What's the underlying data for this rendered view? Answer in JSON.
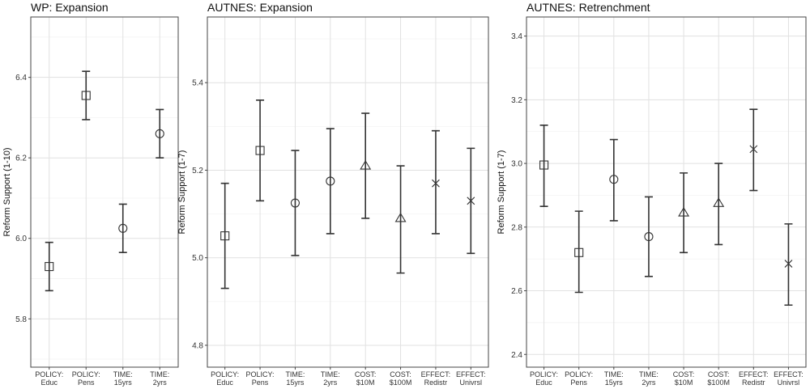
{
  "chart_data": [
    {
      "type": "errorbar",
      "title": "WP: Expansion",
      "ylabel": "Reform Support (1-10)",
      "ylim": [
        5.68,
        6.55
      ],
      "yticks": [
        "5.8",
        "6.0",
        "6.2",
        "6.4"
      ],
      "grid": true,
      "categories": [
        [
          "POLICY:",
          "Educ"
        ],
        [
          "POLICY:",
          "Pens"
        ],
        [
          "TIME:",
          "15yrs"
        ],
        [
          "TIME:",
          "2yrs"
        ]
      ],
      "markers": [
        "square",
        "square",
        "circle",
        "circle"
      ],
      "values": [
        5.93,
        6.355,
        6.025,
        6.26
      ],
      "lower": [
        5.87,
        6.295,
        5.965,
        6.2
      ],
      "upper": [
        5.99,
        6.415,
        6.085,
        6.32
      ]
    },
    {
      "type": "errorbar",
      "title": "AUTNES: Expansion",
      "ylabel": "Reform Support (1-7)",
      "ylim": [
        4.75,
        5.55
      ],
      "yticks": [
        "4.8",
        "5.0",
        "5.2",
        "5.4"
      ],
      "grid": true,
      "categories": [
        [
          "POLICY:",
          "Educ"
        ],
        [
          "POLICY:",
          "Pens"
        ],
        [
          "TIME:",
          "15yrs"
        ],
        [
          "TIME:",
          "2yrs"
        ],
        [
          "COST:",
          "$10M"
        ],
        [
          "COST:",
          "$100M"
        ],
        [
          "EFFECT:",
          "Redistr"
        ],
        [
          "EFFECT:",
          "Univrsl"
        ]
      ],
      "markers": [
        "square",
        "square",
        "circle",
        "circle",
        "triangle",
        "triangle",
        "x",
        "x"
      ],
      "values": [
        5.05,
        5.245,
        5.125,
        5.175,
        5.21,
        5.09,
        5.17,
        5.13
      ],
      "lower": [
        4.93,
        5.13,
        5.005,
        5.055,
        5.09,
        4.965,
        5.055,
        5.01
      ],
      "upper": [
        5.17,
        5.36,
        5.245,
        5.295,
        5.33,
        5.21,
        5.29,
        5.25
      ]
    },
    {
      "type": "errorbar",
      "title": "AUTNES: Retrenchment",
      "ylabel": "Reform Support (1-7)",
      "ylim": [
        2.36,
        3.46
      ],
      "yticks": [
        "2.4",
        "2.6",
        "2.8",
        "3.0",
        "3.2",
        "3.4"
      ],
      "grid": true,
      "categories": [
        [
          "POLICY:",
          "Educ"
        ],
        [
          "POLICY:",
          "Pens"
        ],
        [
          "TIME:",
          "15yrs"
        ],
        [
          "TIME:",
          "2yrs"
        ],
        [
          "COST:",
          "$10M"
        ],
        [
          "COST:",
          "$100M"
        ],
        [
          "EFFECT:",
          "Redistr"
        ],
        [
          "EFFECT:",
          "Univrsl"
        ]
      ],
      "markers": [
        "square",
        "square",
        "circle",
        "circle",
        "triangle",
        "triangle",
        "x",
        "x"
      ],
      "values": [
        2.995,
        2.72,
        2.95,
        2.77,
        2.845,
        2.875,
        3.045,
        2.685
      ],
      "lower": [
        2.865,
        2.595,
        2.82,
        2.645,
        2.72,
        2.745,
        2.915,
        2.555
      ],
      "upper": [
        3.12,
        2.85,
        3.075,
        2.895,
        2.97,
        3.0,
        3.17,
        2.81
      ]
    }
  ]
}
